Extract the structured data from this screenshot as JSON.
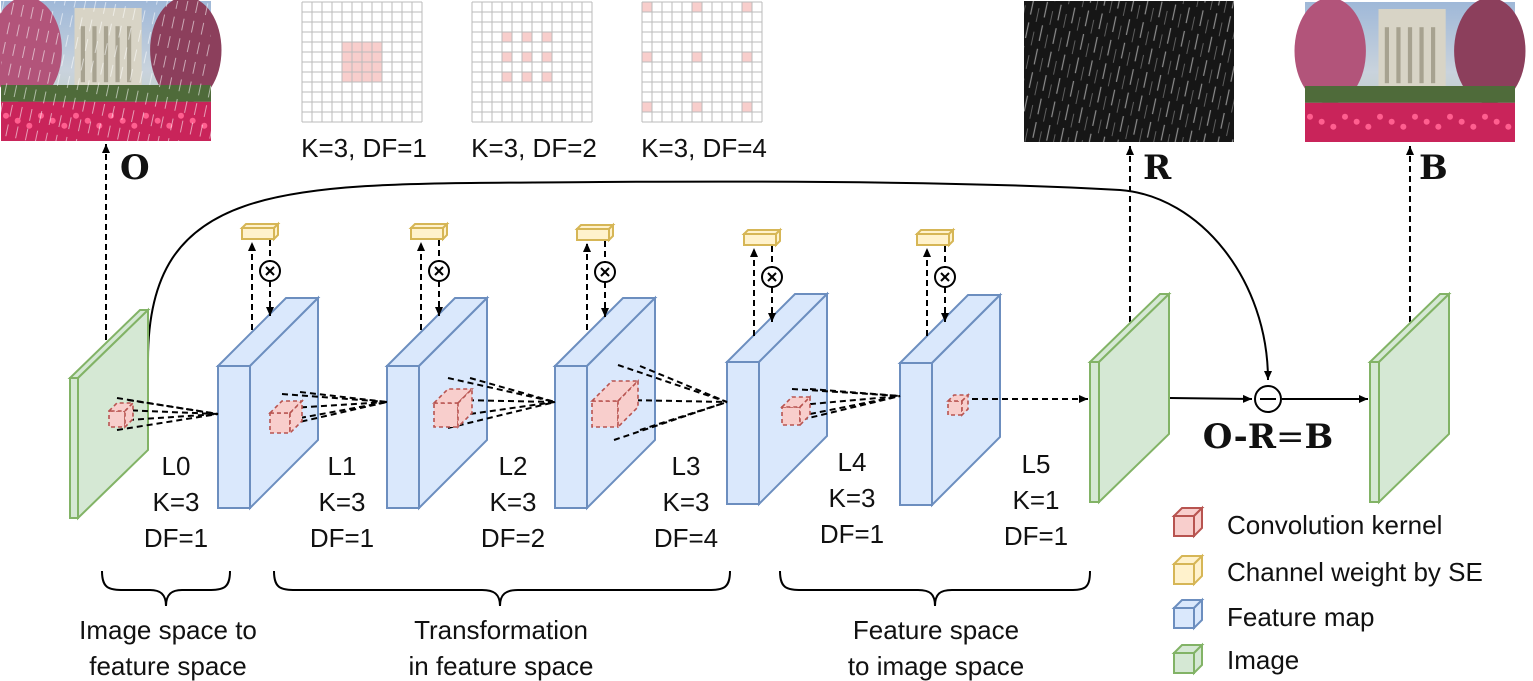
{
  "dilation_grids": [
    {
      "label": "K=3, DF=1",
      "dilation": 1
    },
    {
      "label": "K=3, DF=2",
      "dilation": 2
    },
    {
      "label": "K=3, DF=4",
      "dilation": 4
    }
  ],
  "outputs": {
    "o": "O",
    "r": "R",
    "b": "B"
  },
  "equation": {
    "o": "O",
    "minus": "-",
    "r": "R",
    "eq": "=",
    "b": "B"
  },
  "layers": [
    {
      "name": "L0",
      "k": "K=3",
      "df": "DF=1"
    },
    {
      "name": "L1",
      "k": "K=3",
      "df": "DF=1"
    },
    {
      "name": "L2",
      "k": "K=3",
      "df": "DF=2"
    },
    {
      "name": "L3",
      "k": "K=3",
      "df": "DF=4"
    },
    {
      "name": "L4",
      "k": "K=3",
      "df": "DF=1"
    },
    {
      "name": "L5",
      "k": "K=1",
      "df": "DF=1"
    }
  ],
  "stages": [
    {
      "line1": "Image space to",
      "line2": "feature space"
    },
    {
      "line1": "Transformation",
      "line2": "in feature space"
    },
    {
      "line1": "Feature space",
      "line2": "to image space"
    }
  ],
  "legend": [
    {
      "label": "Convolution kernel",
      "color": "#f8cecc",
      "stroke": "#b85450"
    },
    {
      "label": "Channel weight by SE",
      "color": "#fff2cc",
      "stroke": "#d6b656"
    },
    {
      "label": "Feature map",
      "color": "#dae8fc",
      "stroke": "#6c8ebf"
    },
    {
      "label": "Image",
      "color": "#d5e8d4",
      "stroke": "#82b366"
    }
  ],
  "colors": {
    "kernel_fill": "#f8cecc",
    "kernel_stroke": "#b85450",
    "se_fill": "#fff2cc",
    "se_stroke": "#d6b656",
    "feature_fill": "#dae8fc",
    "feature_stroke": "#6c8ebf",
    "image_fill": "#d5e8d4",
    "image_stroke": "#82b366"
  }
}
